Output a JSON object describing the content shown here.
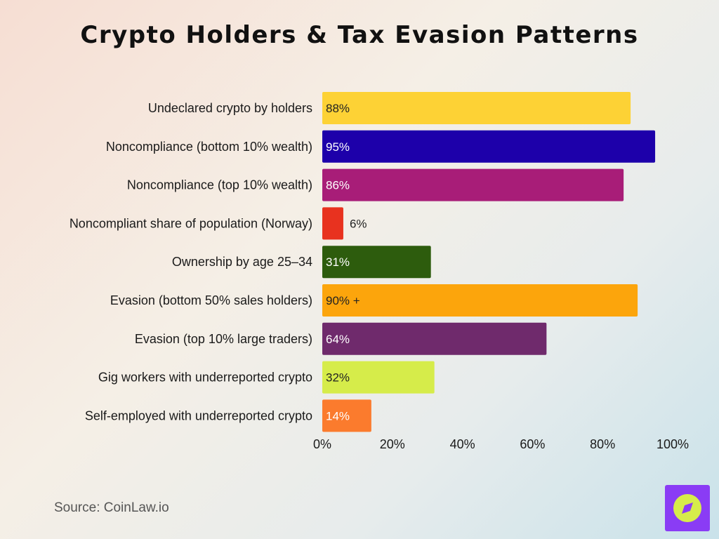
{
  "chart_data": {
    "type": "bar",
    "orientation": "horizontal",
    "title": "Crypto Holders & Tax Evasion Patterns",
    "categories": [
      "Undeclared crypto by holders",
      "Noncompliance (bottom 10% wealth)",
      "Noncompliance (top 10% wealth)",
      "Noncompliant share of population (Norway)",
      "Ownership by age 25–34",
      "Evasion (bottom 50% sales holders)",
      "Evasion (top 10% large traders)",
      "Gig workers with underreported crypto",
      "Self-employed with underreported crypto"
    ],
    "values": [
      88,
      95,
      86,
      6,
      31,
      90,
      64,
      32,
      14
    ],
    "data_labels": [
      "88%",
      "95%",
      "86%",
      "6%",
      "31%",
      "90% +",
      "64%",
      "32%",
      "14%"
    ],
    "bar_colors": [
      "#fdd235",
      "#1d00aa",
      "#a81d78",
      "#e8321f",
      "#2d5c0d",
      "#fca50c",
      "#6f2a6c",
      "#d6ec4a",
      "#fb7b2d"
    ],
    "label_colors": [
      "#222222",
      "#ffffff",
      "#ffffff",
      "#222222",
      "#ffffff",
      "#222222",
      "#ffffff",
      "#222222",
      "#ffffff"
    ],
    "xlim": [
      0,
      100
    ],
    "x_ticks": [
      "0%",
      "20%",
      "40%",
      "60%",
      "80%",
      "100%"
    ],
    "grid": false,
    "legend": "none"
  },
  "source": "Source: CoinLaw.io",
  "logo_icon": "compass-icon"
}
